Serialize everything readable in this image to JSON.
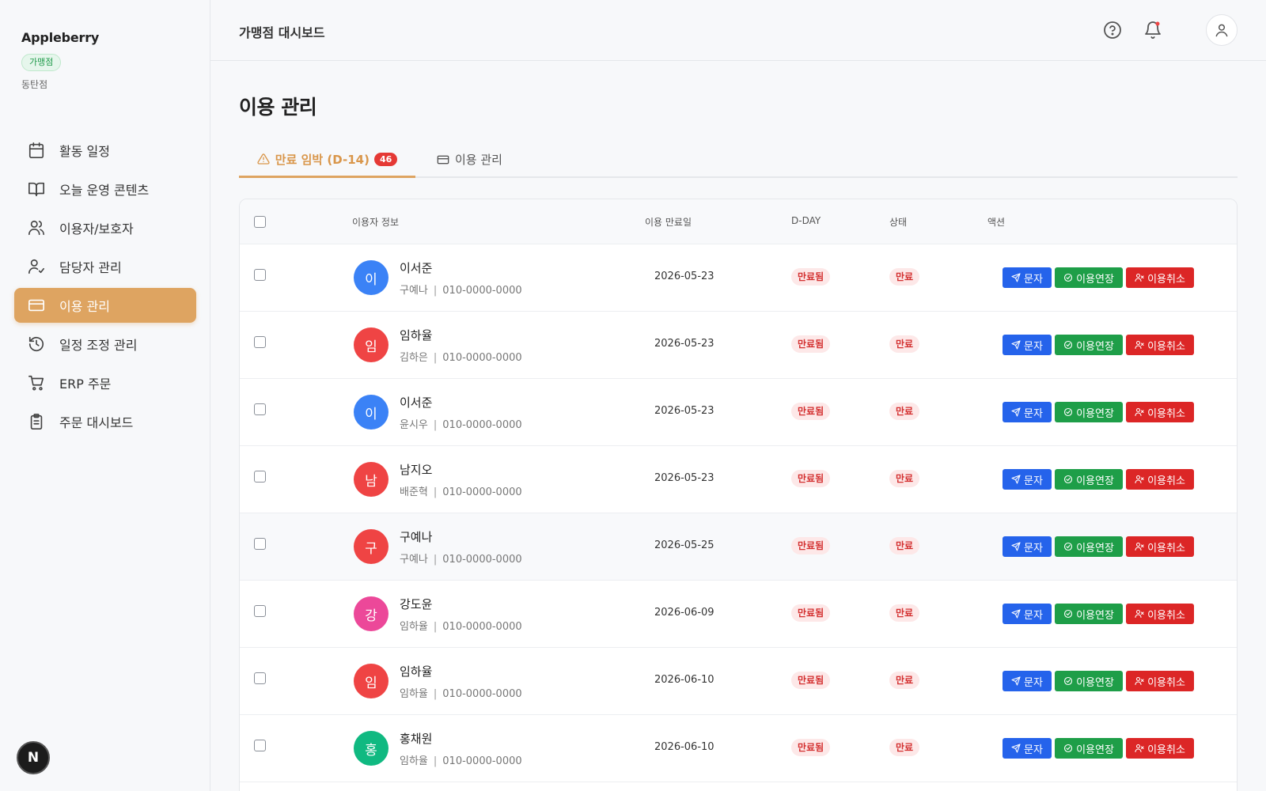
{
  "sidebar": {
    "brand": "Appleberry",
    "role_badge": "가맹점",
    "branch": "동탄점",
    "items": [
      {
        "label": "활동 일정",
        "icon": "calendar-icon",
        "active": false
      },
      {
        "label": "오늘 운영 콘텐츠",
        "icon": "book-open-icon",
        "active": false
      },
      {
        "label": "이용자/보호자",
        "icon": "users-icon",
        "active": false
      },
      {
        "label": "담당자 관리",
        "icon": "user-check-icon",
        "active": false
      },
      {
        "label": "이용 관리",
        "icon": "credit-card-icon",
        "active": true
      },
      {
        "label": "일정 조정 관리",
        "icon": "history-icon",
        "active": false
      },
      {
        "label": "ERP 주문",
        "icon": "cart-icon",
        "active": false
      },
      {
        "label": "주문 대시보드",
        "icon": "clipboard-list-icon",
        "active": false
      }
    ],
    "bottom_badge": "N"
  },
  "header": {
    "title": "가맹점 대시보드",
    "icons": [
      "help-circle-icon",
      "bell-icon",
      "user-icon"
    ]
  },
  "main": {
    "page_title": "이용 관리",
    "tabs": [
      {
        "label": "만료 임박 (D-14)",
        "count": "46",
        "icon": "alert-triangle-icon",
        "active": true
      },
      {
        "label": "이용 관리",
        "icon": "credit-card-icon",
        "active": false
      }
    ],
    "columns": {
      "user_info": "이용자 정보",
      "expiry_date": "이용 만료일",
      "dday": "D-DAY",
      "status": "상태",
      "action": "액션"
    },
    "actions": {
      "message": "문자",
      "extend": "이용연장",
      "cancel": "이용취소"
    },
    "rows": [
      {
        "initial": "이",
        "name": "이서준",
        "guardian": "구예나",
        "phone": "010-0000-0000",
        "expiry": "2026-05-23",
        "dday": "만료됨",
        "status": "만료",
        "avatar_color": "#3b82f6"
      },
      {
        "initial": "임",
        "name": "임하율",
        "guardian": "김하은",
        "phone": "010-0000-0000",
        "expiry": "2026-05-23",
        "dday": "만료됨",
        "status": "만료",
        "avatar_color": "#ef4444"
      },
      {
        "initial": "이",
        "name": "이서준",
        "guardian": "윤시우",
        "phone": "010-0000-0000",
        "expiry": "2026-05-23",
        "dday": "만료됨",
        "status": "만료",
        "avatar_color": "#3b82f6"
      },
      {
        "initial": "남",
        "name": "남지오",
        "guardian": "배준혁",
        "phone": "010-0000-0000",
        "expiry": "2026-05-23",
        "dday": "만료됨",
        "status": "만료",
        "avatar_color": "#ef4444"
      },
      {
        "initial": "구",
        "name": "구예나",
        "guardian": "구예나",
        "phone": "010-0000-0000",
        "expiry": "2026-05-25",
        "dday": "만료됨",
        "status": "만료",
        "avatar_color": "#ef4444"
      },
      {
        "initial": "강",
        "name": "강도윤",
        "guardian": "임하율",
        "phone": "010-0000-0000",
        "expiry": "2026-06-09",
        "dday": "만료됨",
        "status": "만료",
        "avatar_color": "#ec4899"
      },
      {
        "initial": "임",
        "name": "임하율",
        "guardian": "임하율",
        "phone": "010-0000-0000",
        "expiry": "2026-06-10",
        "dday": "만료됨",
        "status": "만료",
        "avatar_color": "#ef4444"
      },
      {
        "initial": "홍",
        "name": "홍채원",
        "guardian": "임하율",
        "phone": "010-0000-0000",
        "expiry": "2026-06-10",
        "dday": "만료됨",
        "status": "만료",
        "avatar_color": "#10b981"
      }
    ]
  }
}
